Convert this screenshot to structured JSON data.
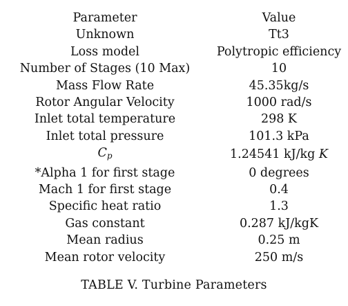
{
  "table": {
    "header": {
      "parameter": "Parameter",
      "value": "Value"
    },
    "rows": [
      {
        "parameter": "Unknown",
        "value": "Tt3"
      },
      {
        "parameter": "Loss model",
        "value": "Polytropic efficiency"
      },
      {
        "parameter": "Number of Stages (10 Max)",
        "value": "10"
      },
      {
        "parameter": "Mass Flow Rate",
        "value": "45.35kg/s"
      },
      {
        "parameter": "Rotor Angular Velocity",
        "value": "1000 rad/s"
      },
      {
        "parameter": "Inlet total temperature",
        "value": "298 K"
      },
      {
        "parameter": "Inlet total pressure",
        "value": "101.3 kPa"
      },
      {
        "parameter_symbol": "C",
        "parameter_subscript": "p",
        "value_prefix": "1.24541 kJ/kg ",
        "value_unit_italic": "K"
      },
      {
        "parameter": "*Alpha 1 for first stage",
        "value": "0 degrees"
      },
      {
        "parameter": "Mach 1 for first stage",
        "value": "0.4"
      },
      {
        "parameter": "Specific heat ratio",
        "value": "1.3"
      },
      {
        "parameter": "Gas constant",
        "value": "0.287 kJ/kgK"
      },
      {
        "parameter": "Mean radius",
        "value": "0.25 m"
      },
      {
        "parameter": "Mean rotor velocity",
        "value": "250 m/s"
      }
    ]
  },
  "caption": "TABLE V. Turbine Parameters"
}
